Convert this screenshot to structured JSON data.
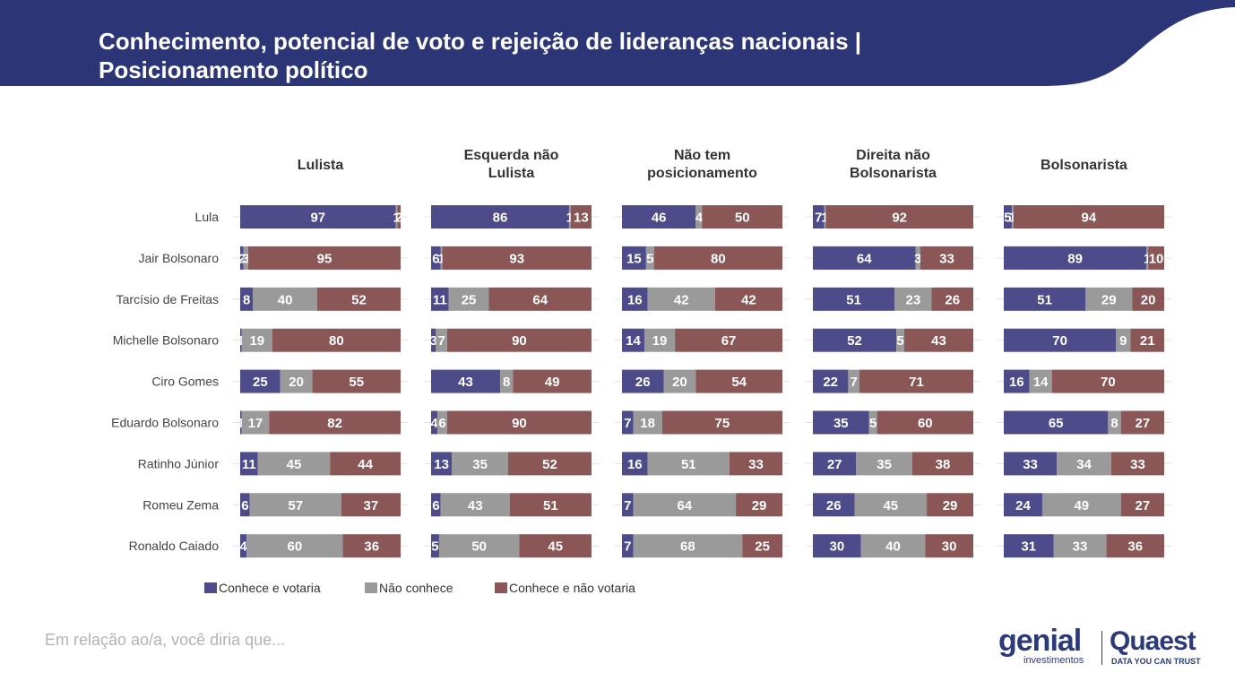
{
  "header": {
    "title_line1": "Conhecimento, potencial de voto e rejeição de lideranças nacionais |",
    "title_line2": "Posicionamento político",
    "band_color": "#2c3676"
  },
  "footer": {
    "note": "Em relação ao/a, você diria que..."
  },
  "logos": {
    "genial": "genial",
    "genial_sub": "investimentos",
    "quaest": "Quaest",
    "quaest_sub": "DATA YOU CAN TRUST"
  },
  "chart_data": {
    "type": "bar",
    "orientation": "horizontal-stacked-100",
    "categories": [
      "Lula",
      "Jair Bolsonaro",
      "Tarcísio de Freitas",
      "Michelle Bolsonaro",
      "Ciro Gomes",
      "Eduardo Bolsonaro",
      "Ratinho Júnior",
      "Romeu Zema",
      "Ronaldo Caiado"
    ],
    "legend_position": "bottom-left",
    "series_legend": [
      {
        "name": "Conhece e votaria",
        "color": "#4e4b8b"
      },
      {
        "name": "Não conhece",
        "color": "#9a9a9a"
      },
      {
        "name": "Conhece e não votaria",
        "color": "#8a5656"
      }
    ],
    "panels": [
      {
        "title_lines": [
          "Lulista"
        ],
        "values": [
          [
            97,
            1,
            2
          ],
          [
            2,
            3,
            95
          ],
          [
            8,
            40,
            52
          ],
          [
            1,
            19,
            80
          ],
          [
            25,
            20,
            55
          ],
          [
            1,
            17,
            82
          ],
          [
            11,
            45,
            44
          ],
          [
            6,
            57,
            37
          ],
          [
            4,
            60,
            36
          ]
        ],
        "labels": [
          [
            "97",
            "1",
            "2"
          ],
          [
            "2",
            "3",
            "95"
          ],
          [
            "8",
            "40",
            "52"
          ],
          [
            "1",
            "19",
            "80"
          ],
          [
            "25",
            "20",
            "55"
          ],
          [
            "1",
            "17",
            "82"
          ],
          [
            "11",
            "45",
            "44"
          ],
          [
            "6",
            "57",
            "37"
          ],
          [
            "4",
            "60",
            "36"
          ]
        ]
      },
      {
        "title_lines": [
          "Esquerda não",
          "Lulista"
        ],
        "values": [
          [
            86,
            1,
            13
          ],
          [
            6,
            1,
            93
          ],
          [
            11,
            25,
            64
          ],
          [
            3,
            7,
            90
          ],
          [
            43,
            8,
            49
          ],
          [
            4,
            6,
            90
          ],
          [
            13,
            35,
            52
          ],
          [
            6,
            43,
            51
          ],
          [
            5,
            50,
            45
          ]
        ],
        "labels": [
          [
            "86",
            "1",
            "13"
          ],
          [
            "6",
            "1",
            "93"
          ],
          [
            "11",
            "25",
            "64"
          ],
          [
            "3",
            "7",
            "90"
          ],
          [
            "43",
            "8",
            "49"
          ],
          [
            "4",
            "6",
            "90"
          ],
          [
            "13",
            "35",
            "52"
          ],
          [
            "6",
            "43",
            "51"
          ],
          [
            "5",
            "50",
            "45"
          ]
        ]
      },
      {
        "title_lines": [
          "Não tem",
          "posicionamento"
        ],
        "values": [
          [
            46,
            4,
            50
          ],
          [
            15,
            5,
            80
          ],
          [
            16,
            42,
            42
          ],
          [
            14,
            19,
            67
          ],
          [
            26,
            20,
            54
          ],
          [
            7,
            18,
            75
          ],
          [
            16,
            51,
            33
          ],
          [
            7,
            64,
            29
          ],
          [
            7,
            68,
            25
          ]
        ],
        "labels": [
          [
            "46",
            "4",
            "50"
          ],
          [
            "15",
            "5",
            "80"
          ],
          [
            "16",
            "42",
            "42"
          ],
          [
            "14",
            "19",
            "67"
          ],
          [
            "26",
            "20",
            "54"
          ],
          [
            "7",
            "18",
            "75"
          ],
          [
            "16",
            "51",
            "33"
          ],
          [
            "7",
            "64",
            "29"
          ],
          [
            "7",
            "68",
            "25"
          ]
        ]
      },
      {
        "title_lines": [
          "Direita não",
          "Bolsonarista"
        ],
        "values": [
          [
            7,
            1,
            92
          ],
          [
            64,
            3,
            33
          ],
          [
            51,
            23,
            26
          ],
          [
            52,
            5,
            43
          ],
          [
            22,
            7,
            71
          ],
          [
            35,
            5,
            60
          ],
          [
            27,
            35,
            38
          ],
          [
            26,
            45,
            29
          ],
          [
            30,
            40,
            30
          ]
        ],
        "labels": [
          [
            "7",
            "1",
            "92"
          ],
          [
            "64",
            "3",
            "33"
          ],
          [
            "51",
            "23",
            "26"
          ],
          [
            "52",
            "5",
            "43"
          ],
          [
            "22",
            "7",
            "71"
          ],
          [
            "35",
            "5",
            "60"
          ],
          [
            "27",
            "35",
            "38"
          ],
          [
            "26",
            "45",
            "29"
          ],
          [
            "30",
            "40",
            "30"
          ]
        ]
      },
      {
        "title_lines": [
          "Bolsonarista"
        ],
        "values": [
          [
            5,
            1,
            94
          ],
          [
            89,
            1,
            10
          ],
          [
            51,
            29,
            20
          ],
          [
            70,
            9,
            21
          ],
          [
            16,
            14,
            70
          ],
          [
            65,
            8,
            27
          ],
          [
            33,
            34,
            33
          ],
          [
            24,
            49,
            27
          ],
          [
            31,
            33,
            36
          ]
        ],
        "labels": [
          [
            "5",
            "1",
            "94"
          ],
          [
            "89",
            "1",
            "10"
          ],
          [
            "51",
            "29",
            "20"
          ],
          [
            "70",
            "9",
            "21"
          ],
          [
            "16",
            "14",
            "70"
          ],
          [
            "65",
            "8",
            "27"
          ],
          [
            "33",
            "34",
            "33"
          ],
          [
            "24",
            "49",
            "27"
          ],
          [
            "31",
            "33",
            "36"
          ]
        ]
      }
    ]
  }
}
